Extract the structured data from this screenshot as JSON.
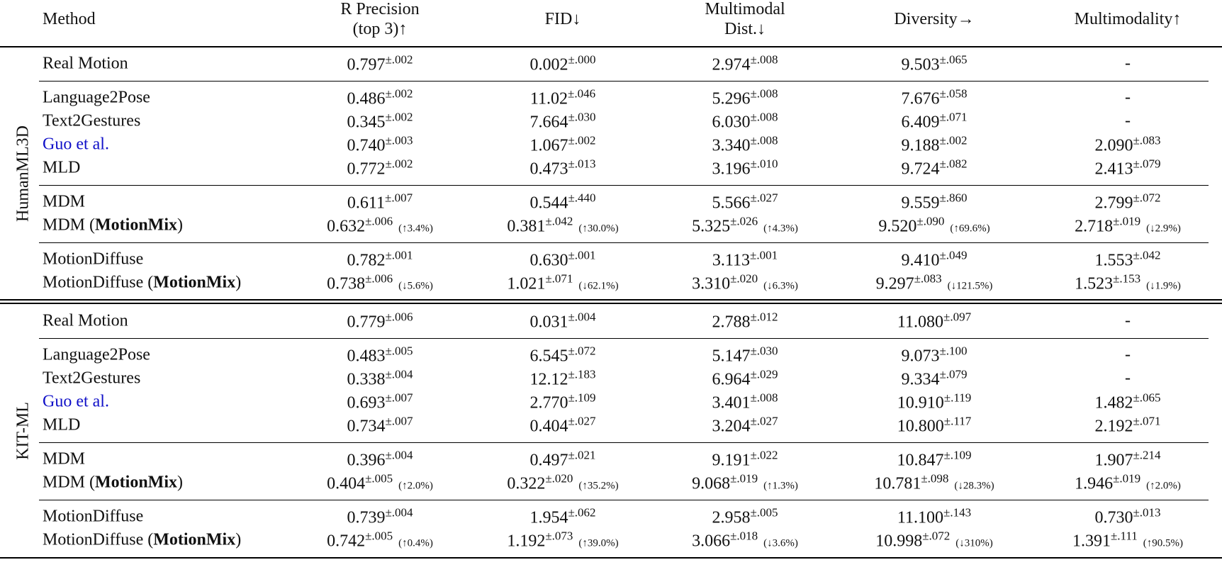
{
  "header": {
    "columns": [
      [
        "Method"
      ],
      [
        "R Precision",
        "(top 3)↑"
      ],
      [
        "FID↓"
      ],
      [
        "Multimodal",
        "Dist.↓"
      ],
      [
        "Diversity→"
      ],
      [
        "Multimodality↑"
      ]
    ]
  },
  "sections": [
    {
      "label": "HumanML3D",
      "groups": [
        {
          "rows": [
            {
              "method": [
                "Real Motion"
              ],
              "cells": [
                [
                  "0.797",
                  "±.002"
                ],
                [
                  "0.002",
                  "±.000"
                ],
                [
                  "2.974",
                  "±.008"
                ],
                [
                  "9.503",
                  "±.065"
                ],
                [
                  "-"
                ]
              ]
            }
          ]
        },
        {
          "rows": [
            {
              "method": [
                "Language2Pose"
              ],
              "cells": [
                [
                  "0.486",
                  "±.002"
                ],
                [
                  "11.02",
                  "±.046"
                ],
                [
                  "5.296",
                  "±.008"
                ],
                [
                  "7.676",
                  "±.058"
                ],
                [
                  "-"
                ]
              ]
            },
            {
              "method": [
                "Text2Gestures"
              ],
              "cells": [
                [
                  "0.345",
                  "±.002"
                ],
                [
                  "7.664",
                  "±.030"
                ],
                [
                  "6.030",
                  "±.008"
                ],
                [
                  "6.409",
                  "±.071"
                ],
                [
                  "-"
                ]
              ]
            },
            {
              "method": [
                "Guo et al."
              ],
              "color": "#1010c8",
              "cells": [
                [
                  "0.740",
                  "±.003"
                ],
                [
                  "1.067",
                  "±.002"
                ],
                [
                  "3.340",
                  "±.008"
                ],
                [
                  "9.188",
                  "±.002"
                ],
                [
                  "2.090",
                  "±.083"
                ]
              ]
            },
            {
              "method": [
                "MLD"
              ],
              "cells": [
                [
                  "0.772",
                  "±.002"
                ],
                [
                  "0.473",
                  "±.013"
                ],
                [
                  "3.196",
                  "±.010"
                ],
                [
                  "9.724",
                  "±.082"
                ],
                [
                  "2.413",
                  "±.079"
                ]
              ]
            }
          ]
        },
        {
          "rows": [
            {
              "method": [
                "MDM"
              ],
              "cells": [
                [
                  "0.611",
                  "±.007"
                ],
                [
                  "0.544",
                  "±.440"
                ],
                [
                  "5.566",
                  "±.027"
                ],
                [
                  "9.559",
                  "±.860"
                ],
                [
                  "2.799",
                  "±.072"
                ]
              ]
            },
            {
              "method": [
                "MDM (",
                "MotionMix",
                ")"
              ],
              "cells": [
                [
                  "0.632",
                  "±.006",
                  "(↑3.4%)"
                ],
                [
                  "0.381",
                  "±.042",
                  "(↑30.0%)"
                ],
                [
                  "5.325",
                  "±.026",
                  "(↑4.3%)"
                ],
                [
                  "9.520",
                  "±.090",
                  "(↑69.6%)"
                ],
                [
                  "2.718",
                  "±.019",
                  "(↓2.9%)"
                ]
              ]
            }
          ]
        },
        {
          "rows": [
            {
              "method": [
                "MotionDiffuse"
              ],
              "cells": [
                [
                  "0.782",
                  "±.001"
                ],
                [
                  "0.630",
                  "±.001"
                ],
                [
                  "3.113",
                  "±.001"
                ],
                [
                  "9.410",
                  "±.049"
                ],
                [
                  "1.553",
                  "±.042"
                ]
              ]
            },
            {
              "method": [
                "MotionDiffuse (",
                "MotionMix",
                ")"
              ],
              "cells": [
                [
                  "0.738",
                  "±.006",
                  "(↓5.6%)"
                ],
                [
                  "1.021",
                  "±.071",
                  "(↓62.1%)"
                ],
                [
                  "3.310",
                  "±.020",
                  "(↓6.3%)"
                ],
                [
                  "9.297",
                  "±.083",
                  "(↓121.5%)"
                ],
                [
                  "1.523",
                  "±.153",
                  "(↓1.9%)"
                ]
              ]
            }
          ]
        }
      ]
    },
    {
      "label": "KIT-ML",
      "groups": [
        {
          "rows": [
            {
              "method": [
                "Real Motion"
              ],
              "cells": [
                [
                  "0.779",
                  "±.006"
                ],
                [
                  "0.031",
                  "±.004"
                ],
                [
                  "2.788",
                  "±.012"
                ],
                [
                  "11.080",
                  "±.097"
                ],
                [
                  "-"
                ]
              ]
            }
          ]
        },
        {
          "rows": [
            {
              "method": [
                "Language2Pose"
              ],
              "cells": [
                [
                  "0.483",
                  "±.005"
                ],
                [
                  "6.545",
                  "±.072"
                ],
                [
                  "5.147",
                  "±.030"
                ],
                [
                  "9.073",
                  "±.100"
                ],
                [
                  "-"
                ]
              ]
            },
            {
              "method": [
                "Text2Gestures"
              ],
              "cells": [
                [
                  "0.338",
                  "±.004"
                ],
                [
                  "12.12",
                  "±.183"
                ],
                [
                  "6.964",
                  "±.029"
                ],
                [
                  "9.334",
                  "±.079"
                ],
                [
                  "-"
                ]
              ]
            },
            {
              "method": [
                "Guo et al."
              ],
              "color": "#1010c8",
              "cells": [
                [
                  "0.693",
                  "±.007"
                ],
                [
                  "2.770",
                  "±.109"
                ],
                [
                  "3.401",
                  "±.008"
                ],
                [
                  "10.910",
                  "±.119"
                ],
                [
                  "1.482",
                  "±.065"
                ]
              ]
            },
            {
              "method": [
                "MLD"
              ],
              "cells": [
                [
                  "0.734",
                  "±.007"
                ],
                [
                  "0.404",
                  "±.027"
                ],
                [
                  "3.204",
                  "±.027"
                ],
                [
                  "10.800",
                  "±.117"
                ],
                [
                  "2.192",
                  "±.071"
                ]
              ]
            }
          ]
        },
        {
          "rows": [
            {
              "method": [
                "MDM"
              ],
              "cells": [
                [
                  "0.396",
                  "±.004"
                ],
                [
                  "0.497",
                  "±.021"
                ],
                [
                  "9.191",
                  "±.022"
                ],
                [
                  "10.847",
                  "±.109"
                ],
                [
                  "1.907",
                  "±.214"
                ]
              ]
            },
            {
              "method": [
                "MDM (",
                "MotionMix",
                ")"
              ],
              "cells": [
                [
                  "0.404",
                  "±.005",
                  "(↑2.0%)"
                ],
                [
                  "0.322",
                  "±.020",
                  "(↑35.2%)"
                ],
                [
                  "9.068",
                  "±.019",
                  "(↑1.3%)"
                ],
                [
                  "10.781",
                  "±.098",
                  "(↓28.3%)"
                ],
                [
                  "1.946",
                  "±.019",
                  "(↑2.0%)"
                ]
              ]
            }
          ]
        },
        {
          "rows": [
            {
              "method": [
                "MotionDiffuse"
              ],
              "cells": [
                [
                  "0.739",
                  "±.004"
                ],
                [
                  "1.954",
                  "±.062"
                ],
                [
                  "2.958",
                  "±.005"
                ],
                [
                  "11.100",
                  "±.143"
                ],
                [
                  "0.730",
                  "±.013"
                ]
              ]
            },
            {
              "method": [
                "MotionDiffuse (",
                "MotionMix",
                ")"
              ],
              "cells": [
                [
                  "0.742",
                  "±.005",
                  "(↑0.4%)"
                ],
                [
                  "1.192",
                  "±.073",
                  "(↑39.0%)"
                ],
                [
                  "3.066",
                  "±.018",
                  "(↓3.6%)"
                ],
                [
                  "10.998",
                  "±.072",
                  "(↓310%)"
                ],
                [
                  "1.391",
                  "±.111",
                  "(↑90.5%)"
                ]
              ]
            }
          ]
        }
      ]
    }
  ]
}
